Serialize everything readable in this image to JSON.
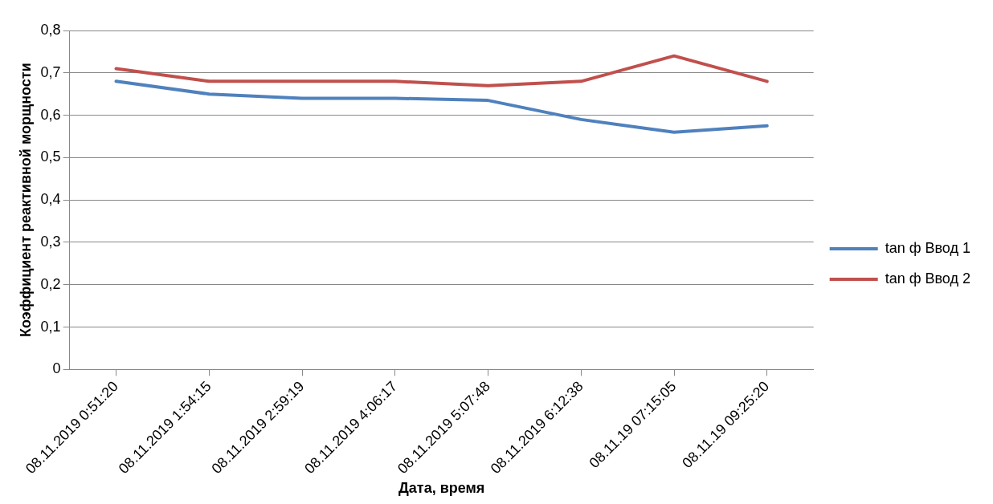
{
  "chart_data": {
    "type": "line",
    "xlabel": "Дата, время",
    "ylabel": "Коэффициент реактивной морщности",
    "categories": [
      "08.11.2019 0:51:20",
      "08.11.2019 1:54:15",
      "08.11.2019 2:59:19",
      "08.11.2019 4:06:17",
      "08.11.2019 5:07:48",
      "08.11.2019 6:12:38",
      "08.11.19 07:15:05",
      "08.11.19 09:25:20"
    ],
    "series": [
      {
        "name": "tan ф Ввод 1",
        "color": "#4f81bd",
        "values": [
          0.68,
          0.65,
          0.64,
          0.64,
          0.635,
          0.59,
          0.56,
          0.575
        ]
      },
      {
        "name": "tan ф Ввод 2",
        "color": "#c0504d",
        "values": [
          0.71,
          0.68,
          0.68,
          0.68,
          0.67,
          0.68,
          0.74,
          0.68
        ]
      }
    ],
    "ylim": [
      0,
      0.8
    ],
    "yticks": [
      0,
      {
        "value": 0.1,
        "label": "0,1"
      },
      {
        "value": 0.2,
        "label": "0,2"
      },
      {
        "value": 0.3,
        "label": "0,3"
      },
      {
        "value": 0.4,
        "label": "0,4"
      },
      {
        "value": 0.5,
        "label": "0,5"
      },
      {
        "value": 0.6,
        "label": "0,6"
      },
      {
        "value": 0.7,
        "label": "0,7"
      },
      {
        "value": 0.8,
        "label": "0,8"
      }
    ],
    "grid": "y",
    "legend": "right",
    "marker": "none",
    "line_style": "solid"
  }
}
